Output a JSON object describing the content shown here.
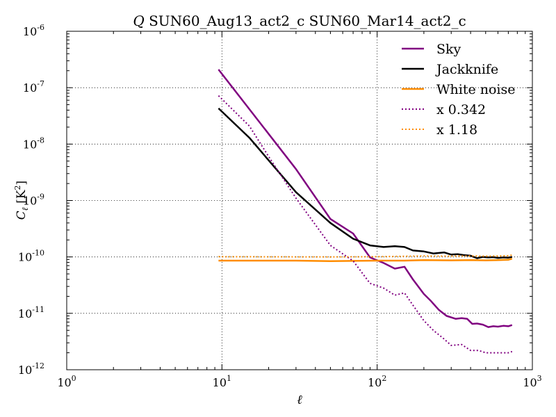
{
  "chart_data": {
    "type": "line",
    "title": "Q SUN60_Aug13_act2_c SUN60_Mar14_act2_c",
    "title_symbol": "Q",
    "title_rest": " SUN60_Aug13_act2_c SUN60_Mar14_act2_c",
    "xlabel": "ℓ",
    "ylabel_main": "C",
    "ylabel_sub": "ℓ",
    "ylabel_unit_open": " [K",
    "ylabel_unit_sup": "2",
    "ylabel_unit_close": "]",
    "xscale": "log",
    "yscale": "log",
    "xlim": [
      1,
      1000
    ],
    "ylim": [
      1e-12,
      1e-06
    ],
    "grid": true,
    "legend_position": "top-right",
    "xticks": [
      {
        "value": 1,
        "base": "10",
        "exp": "0"
      },
      {
        "value": 10,
        "base": "10",
        "exp": "1"
      },
      {
        "value": 100,
        "base": "10",
        "exp": "2"
      },
      {
        "value": 1000,
        "base": "10",
        "exp": "3"
      }
    ],
    "yticks": [
      {
        "value": 1e-12,
        "base": "10",
        "exp": "-12"
      },
      {
        "value": 1e-11,
        "base": "10",
        "exp": "-11"
      },
      {
        "value": 1e-10,
        "base": "10",
        "exp": "-10"
      },
      {
        "value": 1e-09,
        "base": "10",
        "exp": "-9"
      },
      {
        "value": 1e-08,
        "base": "10",
        "exp": "-8"
      },
      {
        "value": 1e-07,
        "base": "10",
        "exp": "-7"
      },
      {
        "value": 1e-06,
        "base": "10",
        "exp": "-6"
      }
    ],
    "series": [
      {
        "name": "Sky",
        "color": "#800080",
        "style": "solid",
        "points": [
          [
            9.5,
            2.1e-07
          ],
          [
            30,
            3.6e-09
          ],
          [
            50,
            4.7e-10
          ],
          [
            70,
            2.6e-10
          ],
          [
            90,
            9.8e-11
          ],
          [
            110,
            7.8e-11
          ],
          [
            130,
            6.2e-11
          ],
          [
            150,
            6.7e-11
          ],
          [
            170,
            4e-11
          ],
          [
            200,
            2.2e-11
          ],
          [
            220,
            1.7e-11
          ],
          [
            250,
            1.15e-11
          ],
          [
            280,
            9e-12
          ],
          [
            320,
            8e-12
          ],
          [
            350,
            8.2e-12
          ],
          [
            380,
            8e-12
          ],
          [
            410,
            6.5e-12
          ],
          [
            440,
            6.6e-12
          ],
          [
            480,
            6.3e-12
          ],
          [
            520,
            5.7e-12
          ],
          [
            560,
            5.9e-12
          ],
          [
            600,
            5.8e-12
          ],
          [
            650,
            6e-12
          ],
          [
            700,
            5.9e-12
          ],
          [
            740,
            6.2e-12
          ]
        ]
      },
      {
        "name": "Jackknife",
        "color": "#000000",
        "style": "solid",
        "points": [
          [
            9.5,
            4.3e-08
          ],
          [
            15,
            1.3e-08
          ],
          [
            30,
            1.4e-09
          ],
          [
            50,
            4e-10
          ],
          [
            70,
            2.1e-10
          ],
          [
            90,
            1.6e-10
          ],
          [
            110,
            1.5e-10
          ],
          [
            130,
            1.55e-10
          ],
          [
            150,
            1.5e-10
          ],
          [
            170,
            1.3e-10
          ],
          [
            200,
            1.25e-10
          ],
          [
            230,
            1.15e-10
          ],
          [
            270,
            1.2e-10
          ],
          [
            300,
            1.1e-10
          ],
          [
            330,
            1.12e-10
          ],
          [
            360,
            1.08e-10
          ],
          [
            400,
            1.05e-10
          ],
          [
            440,
            9.5e-11
          ],
          [
            480,
            1e-10
          ],
          [
            520,
            9.8e-11
          ],
          [
            560,
            9.9e-11
          ],
          [
            600,
            9.6e-11
          ],
          [
            650,
            9.8e-11
          ],
          [
            700,
            9.7e-11
          ],
          [
            740,
            1e-10
          ]
        ]
      },
      {
        "name": "White noise",
        "color": "#ff8c00",
        "style": "solid",
        "points": [
          [
            9.5,
            8.6e-11
          ],
          [
            30,
            8.6e-11
          ],
          [
            50,
            8.4e-11
          ],
          [
            70,
            8.5e-11
          ],
          [
            100,
            8.6e-11
          ],
          [
            150,
            8.6e-11
          ],
          [
            200,
            8.8e-11
          ],
          [
            300,
            8.7e-11
          ],
          [
            400,
            8.8e-11
          ],
          [
            500,
            8.7e-11
          ],
          [
            600,
            8.8e-11
          ],
          [
            700,
            8.9e-11
          ],
          [
            740,
            9.3e-11
          ]
        ]
      },
      {
        "name": "x 0.342",
        "color": "#800080",
        "style": "dotted",
        "points": [
          [
            9.5,
            7.2e-08
          ],
          [
            15,
            2.1e-08
          ],
          [
            20,
            6e-09
          ],
          [
            30,
            1.1e-09
          ],
          [
            50,
            1.6e-10
          ],
          [
            70,
            8.5e-11
          ],
          [
            90,
            3.4e-11
          ],
          [
            110,
            2.8e-11
          ],
          [
            130,
            2.1e-11
          ],
          [
            150,
            2.3e-11
          ],
          [
            170,
            1.4e-11
          ],
          [
            200,
            7.4e-12
          ],
          [
            230,
            5e-12
          ],
          [
            270,
            3.5e-12
          ],
          [
            300,
            2.7e-12
          ],
          [
            350,
            2.8e-12
          ],
          [
            400,
            2.2e-12
          ],
          [
            450,
            2.2e-12
          ],
          [
            500,
            2e-12
          ],
          [
            550,
            2e-12
          ],
          [
            600,
            2e-12
          ],
          [
            650,
            2e-12
          ],
          [
            700,
            2e-12
          ],
          [
            740,
            2.1e-12
          ]
        ]
      },
      {
        "name": "x 1.18",
        "color": "#ff8c00",
        "style": "dotted",
        "points": [
          [
            9.5,
            1.01e-10
          ],
          [
            50,
            1e-10
          ],
          [
            100,
            1.01e-10
          ],
          [
            200,
            1.04e-10
          ],
          [
            300,
            1.03e-10
          ],
          [
            400,
            1.04e-10
          ],
          [
            500,
            1.03e-10
          ],
          [
            600,
            1.04e-10
          ],
          [
            700,
            1.05e-10
          ],
          [
            740,
            1.08e-10
          ]
        ]
      }
    ]
  }
}
